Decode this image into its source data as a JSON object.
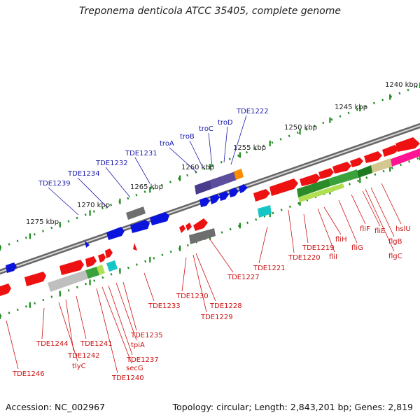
{
  "title": "Treponema denticola ATCC 35405, complete genome",
  "accession": "Accession: NC_002967",
  "summary": "Topology: circular; Length: 2,843,201 bp; Genes: 2,819",
  "colors": {
    "forward_label": "#1a1aaa",
    "reverse_label": "#cc1111",
    "forward_gene": "#0a14dd",
    "reverse_gene": "#ee1111",
    "tick": "#1c8a1c",
    "backbone": "#888888"
  },
  "scale_labels": [
    "1240 kbp",
    "1245 kbp",
    "1250 kbp",
    "1255 kbp",
    "1260 kbp",
    "1265 kbp",
    "1270 kbp",
    "1275 kbp"
  ],
  "forward_labels": [
    "TDE1222",
    "troD",
    "troC",
    "troB",
    "troA",
    "TDE1231",
    "TDE1232",
    "TDE1234",
    "TDE1239"
  ],
  "reverse_labels": [
    "hslU",
    "flgC",
    "flgB",
    "fliE",
    "fliF",
    "fliG",
    "fliH",
    "fliI",
    "TDE1219",
    "TDE1220",
    "TDE1221",
    "TDE1227",
    "TDE1228",
    "TDE1229",
    "TDE1230",
    "TDE1233",
    "TDE1235",
    "tpiA",
    "TDE1237",
    "secG",
    "TDE1240",
    "TDE1241",
    "TDE1242",
    "tlyC",
    "TDE1244",
    "TDE1246"
  ]
}
